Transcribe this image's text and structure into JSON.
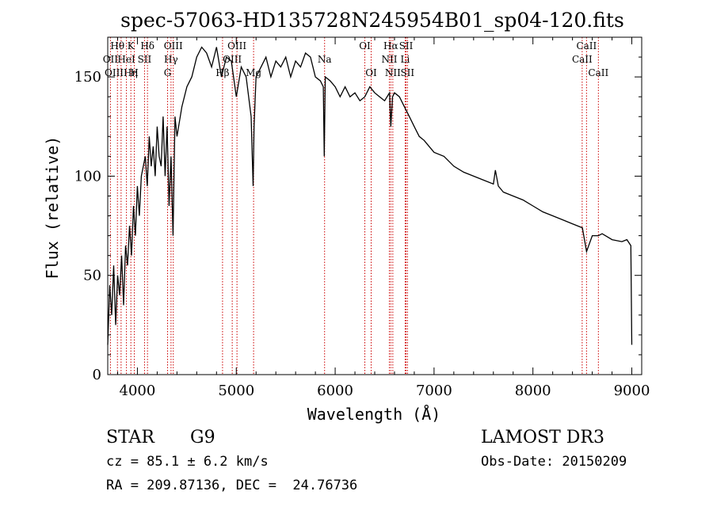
{
  "chart_data": {
    "type": "line",
    "title": "spec-57063-HD135728N245954B01_sp04-120.fits",
    "xlabel": "Wavelength (Å)",
    "ylabel": "Flux (relative)",
    "xlim": [
      3700,
      9100
    ],
    "ylim": [
      0,
      170
    ],
    "xticks": [
      4000,
      5000,
      6000,
      7000,
      8000,
      9000
    ],
    "yticks": [
      0,
      50,
      100,
      150
    ],
    "grid": false,
    "series": [
      {
        "name": "spectrum",
        "x": [
          3700,
          3720,
          3740,
          3760,
          3780,
          3800,
          3820,
          3840,
          3860,
          3880,
          3900,
          3920,
          3940,
          3960,
          3980,
          4000,
          4020,
          4040,
          4060,
          4080,
          4100,
          4120,
          4140,
          4160,
          4180,
          4200,
          4220,
          4240,
          4260,
          4280,
          4300,
          4320,
          4340,
          4360,
          4380,
          4400,
          4450,
          4500,
          4550,
          4600,
          4650,
          4700,
          4750,
          4800,
          4850,
          4900,
          4950,
          5000,
          5050,
          5100,
          5150,
          5170,
          5180,
          5200,
          5250,
          5300,
          5350,
          5400,
          5450,
          5500,
          5550,
          5600,
          5650,
          5700,
          5750,
          5800,
          5850,
          5880,
          5890,
          5900,
          5950,
          6000,
          6050,
          6100,
          6150,
          6200,
          6250,
          6300,
          6350,
          6400,
          6450,
          6500,
          6550,
          6563,
          6580,
          6600,
          6650,
          6700,
          6750,
          6800,
          6850,
          6900,
          6950,
          7000,
          7100,
          7200,
          7300,
          7400,
          7500,
          7600,
          7620,
          7650,
          7700,
          7800,
          7900,
          8000,
          8100,
          8200,
          8300,
          8400,
          8500,
          8542,
          8600,
          8662,
          8700,
          8800,
          8900,
          8950,
          8990,
          9000
        ],
        "y": [
          15,
          45,
          30,
          55,
          25,
          50,
          40,
          60,
          35,
          65,
          55,
          75,
          60,
          85,
          70,
          95,
          80,
          100,
          105,
          110,
          95,
          120,
          105,
          115,
          100,
          125,
          110,
          105,
          130,
          100,
          125,
          85,
          110,
          70,
          130,
          120,
          135,
          145,
          150,
          160,
          165,
          162,
          155,
          165,
          150,
          160,
          158,
          140,
          155,
          150,
          130,
          95,
          125,
          150,
          155,
          160,
          150,
          158,
          155,
          160,
          150,
          158,
          155,
          162,
          160,
          150,
          148,
          145,
          110,
          150,
          148,
          145,
          140,
          145,
          140,
          142,
          138,
          140,
          145,
          142,
          140,
          138,
          142,
          125,
          140,
          142,
          140,
          135,
          130,
          125,
          120,
          118,
          115,
          112,
          110,
          105,
          102,
          100,
          98,
          96,
          103,
          95,
          92,
          90,
          88,
          85,
          82,
          80,
          78,
          76,
          74,
          62,
          70,
          70,
          71,
          68,
          67,
          68,
          65,
          15
        ]
      }
    ],
    "line_markers": [
      {
        "label": "Hθ",
        "wavelength": 3798,
        "row": 1
      },
      {
        "label": "OII",
        "wavelength": 3727,
        "row": 2
      },
      {
        "label": "OIIIHη",
        "wavelength": 3835,
        "row": 3
      },
      {
        "label": "HeI",
        "wavelength": 3889,
        "row": 2
      },
      {
        "label": "K",
        "wavelength": 3934,
        "row": 1
      },
      {
        "label": "H",
        "wavelength": 3969,
        "row": 3
      },
      {
        "label": "SII",
        "wavelength": 4072,
        "row": 2
      },
      {
        "label": "Hδ",
        "wavelength": 4102,
        "row": 1
      },
      {
        "label": "OIII",
        "wavelength": 4363,
        "row": 1
      },
      {
        "label": "Hγ",
        "wavelength": 4340,
        "row": 2
      },
      {
        "label": "G",
        "wavelength": 4305,
        "row": 3
      },
      {
        "label": "Hβ",
        "wavelength": 4861,
        "row": 3
      },
      {
        "label": "OIII",
        "wavelength": 4959,
        "row": 2
      },
      {
        "label": "OIII",
        "wavelength": 5007,
        "row": 1
      },
      {
        "label": "Mg",
        "wavelength": 5175,
        "row": 3
      },
      {
        "label": "Na",
        "wavelength": 5893,
        "row": 2
      },
      {
        "label": "OI",
        "wavelength": 6300,
        "row": 1
      },
      {
        "label": "OI",
        "wavelength": 6364,
        "row": 3
      },
      {
        "label": "Hα",
        "wavelength": 6563,
        "row": 1
      },
      {
        "label": "NII",
        "wavelength": 6548,
        "row": 2
      },
      {
        "label": "NII",
        "wavelength": 6583,
        "row": 3
      },
      {
        "label": "SII",
        "wavelength": 6717,
        "row": 1
      },
      {
        "label": "Li",
        "wavelength": 6708,
        "row": 2
      },
      {
        "label": "SII",
        "wavelength": 6731,
        "row": 3
      },
      {
        "label": "CaII",
        "wavelength": 8542,
        "row": 1
      },
      {
        "label": "CaII",
        "wavelength": 8498,
        "row": 2
      },
      {
        "label": "CaII",
        "wavelength": 8662,
        "row": 3
      }
    ],
    "marker_color": "#cc0000"
  },
  "info": {
    "object_class": "STAR",
    "subclass": "G9",
    "survey": "LAMOST DR3",
    "redshift": "cz = 85.1 ± 6.2 km/s",
    "obs_date": "Obs-Date: 20150209",
    "coords": "RA = 209.87136, DEC =  24.76736"
  }
}
